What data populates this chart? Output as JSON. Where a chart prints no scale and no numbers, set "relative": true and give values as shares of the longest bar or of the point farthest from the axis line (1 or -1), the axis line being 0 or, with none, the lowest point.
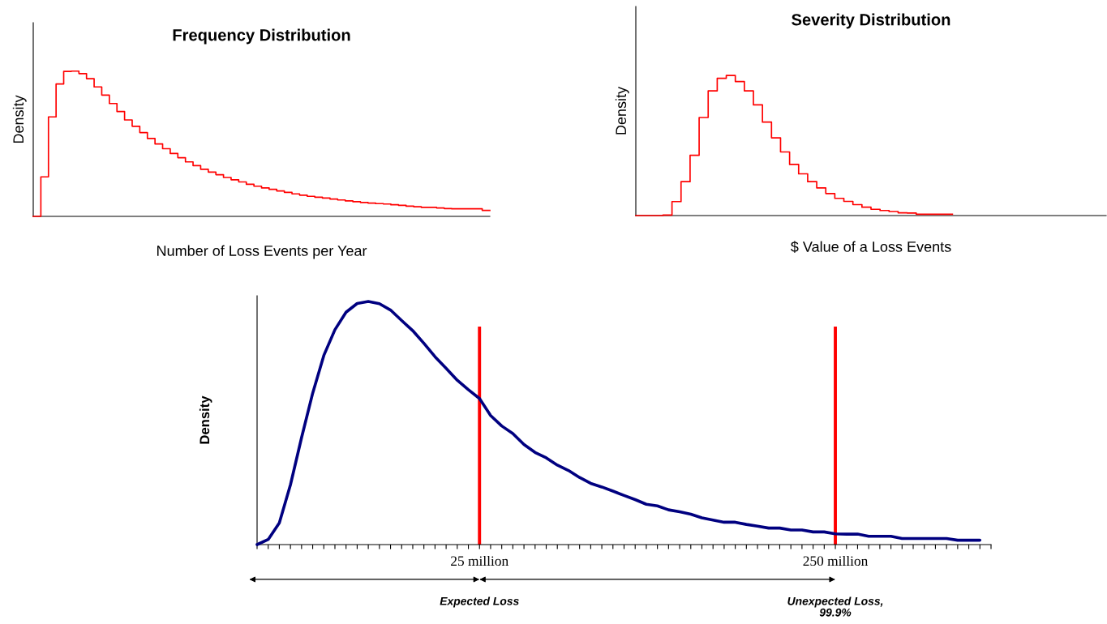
{
  "chart_data": [
    {
      "type": "step",
      "title": "Frequency Distribution",
      "xlabel": "Number of Loss Events per Year",
      "ylabel": "Density",
      "relative": true,
      "categories": [
        null,
        null,
        null,
        null,
        null,
        null,
        null,
        null,
        null,
        null,
        null,
        null,
        null,
        null,
        null,
        null,
        null,
        null,
        null,
        null,
        null,
        null,
        null,
        null,
        null,
        null,
        null,
        null,
        null,
        null,
        null,
        null,
        null,
        null,
        null,
        null,
        null,
        null,
        null,
        null,
        null,
        null,
        null,
        null,
        null,
        null,
        null,
        null,
        null,
        null,
        null,
        null,
        null,
        null,
        null,
        null,
        null,
        null,
        null,
        null,
        null
      ],
      "series": [
        {
          "color": "#ff0000",
          "values": [
            0,
            0.272,
            0.685,
            0.911,
            0.998,
            1.0,
            0.983,
            0.948,
            0.891,
            0.835,
            0.777,
            0.722,
            0.664,
            0.62,
            0.577,
            0.536,
            0.499,
            0.466,
            0.433,
            0.404,
            0.375,
            0.349,
            0.324,
            0.305,
            0.287,
            0.268,
            0.252,
            0.237,
            0.221,
            0.208,
            0.196,
            0.186,
            0.175,
            0.165,
            0.155,
            0.146,
            0.138,
            0.132,
            0.126,
            0.119,
            0.113,
            0.107,
            0.101,
            0.096,
            0.091,
            0.088,
            0.085,
            0.08,
            0.076,
            0.07,
            0.066,
            0.062,
            0.062,
            0.058,
            0.054,
            0.052,
            0.052,
            0.052,
            0.052,
            0.041,
            0.041
          ]
        }
      ]
    },
    {
      "type": "step",
      "title": "Severity Distribution",
      "xlabel": "$ Value of a Loss Events",
      "ylabel": "Density",
      "relative": true,
      "categories": [
        null,
        null,
        null,
        null,
        null,
        null,
        null,
        null,
        null,
        null,
        null,
        null,
        null,
        null,
        null,
        null,
        null,
        null,
        null,
        null,
        null,
        null,
        null,
        null,
        null,
        null,
        null,
        null,
        null,
        null,
        null,
        null,
        null,
        null,
        null,
        null,
        null,
        null,
        null,
        null,
        null,
        null,
        null,
        null,
        null,
        null,
        null,
        null,
        null,
        null,
        null,
        null,
        null
      ],
      "series": [
        {
          "color": "#ff0000",
          "values": [
            0,
            0,
            0,
            0.004,
            0.1,
            0.242,
            0.43,
            0.7,
            0.89,
            0.98,
            1.0,
            0.957,
            0.89,
            0.79,
            0.667,
            0.555,
            0.454,
            0.365,
            0.298,
            0.242,
            0.197,
            0.157,
            0.123,
            0.101,
            0.078,
            0.06,
            0.045,
            0.036,
            0.029,
            0.02,
            0.018,
            0.009,
            0.009,
            0.009,
            0.009,
            0.009,
            null,
            null,
            null,
            null,
            null,
            null,
            null,
            null,
            null,
            null,
            null,
            null,
            null,
            null,
            null,
            null,
            null
          ]
        }
      ]
    },
    {
      "type": "line",
      "ylabel": "Density",
      "relative": true,
      "categories": [
        null,
        null,
        null,
        null,
        null,
        null,
        null,
        null,
        null,
        null,
        null,
        null,
        null,
        null,
        null,
        null,
        null,
        null,
        null,
        null,
        "25 million",
        null,
        null,
        null,
        null,
        null,
        null,
        null,
        null,
        null,
        null,
        null,
        null,
        null,
        null,
        null,
        null,
        null,
        null,
        null,
        null,
        null,
        null,
        null,
        null,
        null,
        null,
        null,
        null,
        null,
        null,
        null,
        "250 million",
        null,
        null,
        null,
        null,
        null,
        null,
        null,
        null,
        null,
        null,
        null,
        null,
        null,
        null
      ],
      "series": [
        {
          "color": "#000080",
          "values": [
            0,
            0.021,
            0.089,
            0.246,
            0.44,
            0.623,
            0.778,
            0.884,
            0.956,
            0.992,
            1.0,
            0.991,
            0.965,
            0.922,
            0.88,
            0.828,
            0.773,
            0.725,
            0.676,
            0.637,
            0.601,
            0.531,
            0.488,
            0.457,
            0.412,
            0.379,
            0.357,
            0.327,
            0.305,
            0.276,
            0.252,
            0.237,
            0.22,
            0.202,
            0.185,
            0.166,
            0.159,
            0.143,
            0.135,
            0.125,
            0.11,
            0.101,
            0.092,
            0.092,
            0.083,
            0.076,
            0.068,
            0.068,
            0.06,
            0.06,
            0.052,
            0.052,
            0.044,
            0.043,
            0.043,
            0.034,
            0.034,
            0.034,
            0.025,
            0.025,
            0.025,
            0.025,
            0.025,
            0.018,
            0.018,
            0.018,
            null
          ]
        }
      ],
      "ref_lines": [
        {
          "axis": "x",
          "value": "25 million",
          "color": "#ff0000"
        },
        {
          "axis": "x",
          "value": "250 million",
          "color": "#ff0000"
        }
      ],
      "annotations": [
        "Expected Loss",
        "Unexpected Loss,\n99.9%"
      ]
    }
  ]
}
